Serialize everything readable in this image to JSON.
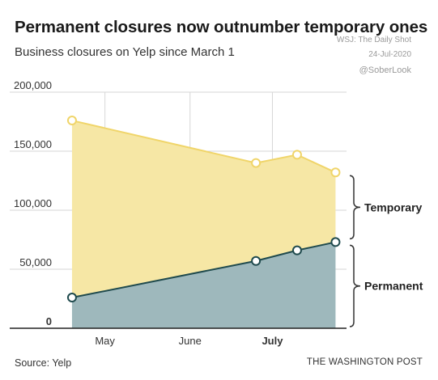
{
  "header": {
    "title": "Permanent closures now outnumber temporary ones",
    "subtitle": "Business closures on Yelp since March 1"
  },
  "watermark": {
    "line1": "WSJ: The Daily Shot",
    "line2": "24-Jul-2020",
    "line3": "@SoberLook"
  },
  "footer": {
    "source": "Source: Yelp",
    "publisher": "THE WASHINGTON POST"
  },
  "colors": {
    "temporary_fill": "#f6e7a5",
    "temporary_line": "#f0d56a",
    "permanent_fill": "#9eb8bc",
    "permanent_line": "#1f4a4d",
    "grid": "#d6d6d6",
    "bracket": "#333333"
  },
  "chart_data": {
    "type": "area",
    "stacked": true,
    "title": "Permanent closures now outnumber temporary ones",
    "subtitle": "Business closures on Yelp since March 1",
    "x": [
      "2020-04-19",
      "2020-06-25",
      "2020-07-10",
      "2020-07-24"
    ],
    "x_ticks": [
      {
        "date": "2020-05-01",
        "label": "May",
        "bold": false
      },
      {
        "date": "2020-06-01",
        "label": "June",
        "bold": false
      },
      {
        "date": "2020-07-01",
        "label": "July",
        "bold": true
      }
    ],
    "xlim": [
      "2020-04-14",
      "2020-07-28"
    ],
    "ylim": [
      0,
      200000
    ],
    "y_ticks": [
      {
        "value": 0,
        "label": "0"
      },
      {
        "value": 50000,
        "label": "50,000"
      },
      {
        "value": 100000,
        "label": "100,000"
      },
      {
        "value": 150000,
        "label": "150,000"
      },
      {
        "value": 200000,
        "label": "200,000"
      }
    ],
    "series": [
      {
        "name": "Permanent",
        "values": [
          26000,
          57000,
          66000,
          73000
        ]
      },
      {
        "name": "Temporary",
        "values": [
          150000,
          83000,
          81000,
          59000
        ]
      }
    ],
    "totals": [
      176000,
      140000,
      147000,
      132000
    ],
    "grid": true,
    "legend": "right-side bracket labels"
  }
}
